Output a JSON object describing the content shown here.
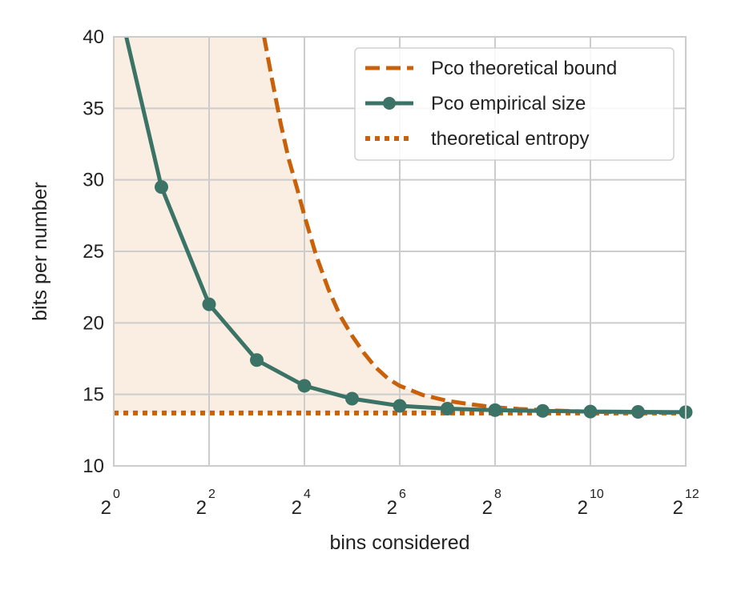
{
  "chart_data": {
    "type": "line",
    "title": "",
    "xlabel": "bins considered",
    "ylabel": "bits per number",
    "xscale": "log2",
    "xlim": [
      1,
      4096
    ],
    "ylim": [
      10,
      40
    ],
    "xtick_exponents": [
      0,
      2,
      4,
      6,
      8,
      10,
      12
    ],
    "xtick_base": "2",
    "yticks": [
      10,
      15,
      20,
      25,
      30,
      35,
      40
    ],
    "grid": true,
    "legend_position": "top-right",
    "series": [
      {
        "name": "Pco theoretical bound",
        "style": "dashed",
        "color": "#c8610a",
        "x": [
          8.9,
          10,
          11.3,
          12.7,
          14.3,
          16,
          19,
          22.6,
          26.9,
          32,
          38,
          45,
          54,
          64,
          90,
          128,
          181,
          256,
          362,
          512,
          724,
          1024,
          1448,
          2048,
          2896,
          4096
        ],
        "y": [
          40,
          37,
          34,
          31.5,
          29.5,
          27.5,
          24.7,
          22.4,
          20.5,
          19.1,
          17.9,
          16.9,
          16.1,
          15.6,
          14.95,
          14.55,
          14.3,
          14.1,
          13.98,
          13.9,
          13.84,
          13.79,
          13.76,
          13.74,
          13.72,
          13.71
        ]
      },
      {
        "name": "Pco empirical size",
        "style": "solid-markers",
        "color": "#3b7366",
        "x": [
          1.2,
          2,
          4,
          8,
          16,
          32,
          64,
          128,
          256,
          512,
          1024,
          2048,
          4096
        ],
        "y": [
          40,
          29.5,
          21.3,
          17.4,
          15.6,
          14.7,
          14.2,
          14.0,
          13.9,
          13.85,
          13.8,
          13.78,
          13.76
        ]
      },
      {
        "name": "theoretical entropy",
        "style": "dotted",
        "color": "#c8610a",
        "x": [
          1,
          4096
        ],
        "y": [
          13.7,
          13.7
        ]
      }
    ],
    "shaded_region": {
      "between": [
        "theoretical entropy",
        "Pco theoretical bound"
      ],
      "color": "#faeee3"
    }
  }
}
